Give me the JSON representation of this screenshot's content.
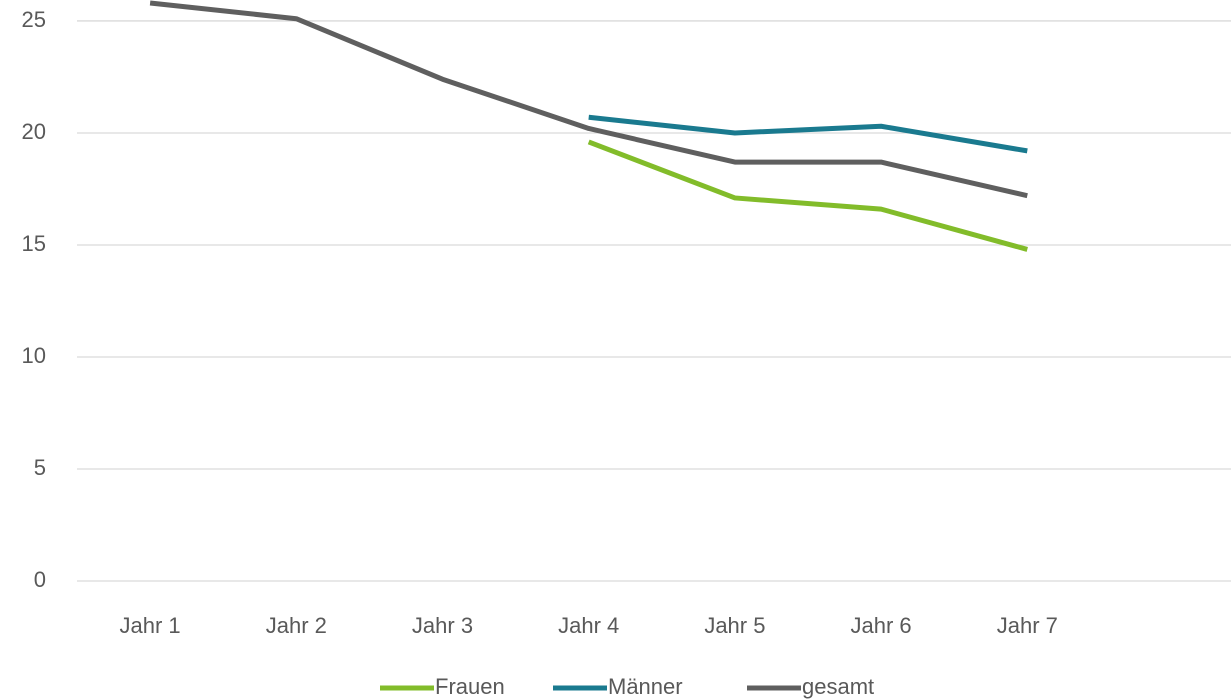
{
  "chart_data": {
    "type": "line",
    "categories": [
      "Jahr 1",
      "Jahr 2",
      "Jahr 3",
      "Jahr 4",
      "Jahr 5",
      "Jahr 6",
      "Jahr 7",
      null
    ],
    "series": [
      {
        "name": "Frauen",
        "color": "#82bc2a",
        "values": [
          null,
          null,
          null,
          19.6,
          17.1,
          16.6,
          14.8,
          null
        ]
      },
      {
        "name": "Männer",
        "color": "#1a7a8f",
        "values": [
          null,
          null,
          null,
          20.7,
          20.0,
          20.3,
          19.2,
          null
        ]
      },
      {
        "name": "gesamt",
        "color": "#5f5f5f",
        "values": [
          25.8,
          25.1,
          22.4,
          20.2,
          18.7,
          18.7,
          17.2,
          null
        ]
      }
    ],
    "ylim": [
      0,
      25.9
    ],
    "yticks": [
      0,
      5,
      10,
      15,
      20,
      25
    ],
    "grid": true,
    "legend": "bottom"
  }
}
